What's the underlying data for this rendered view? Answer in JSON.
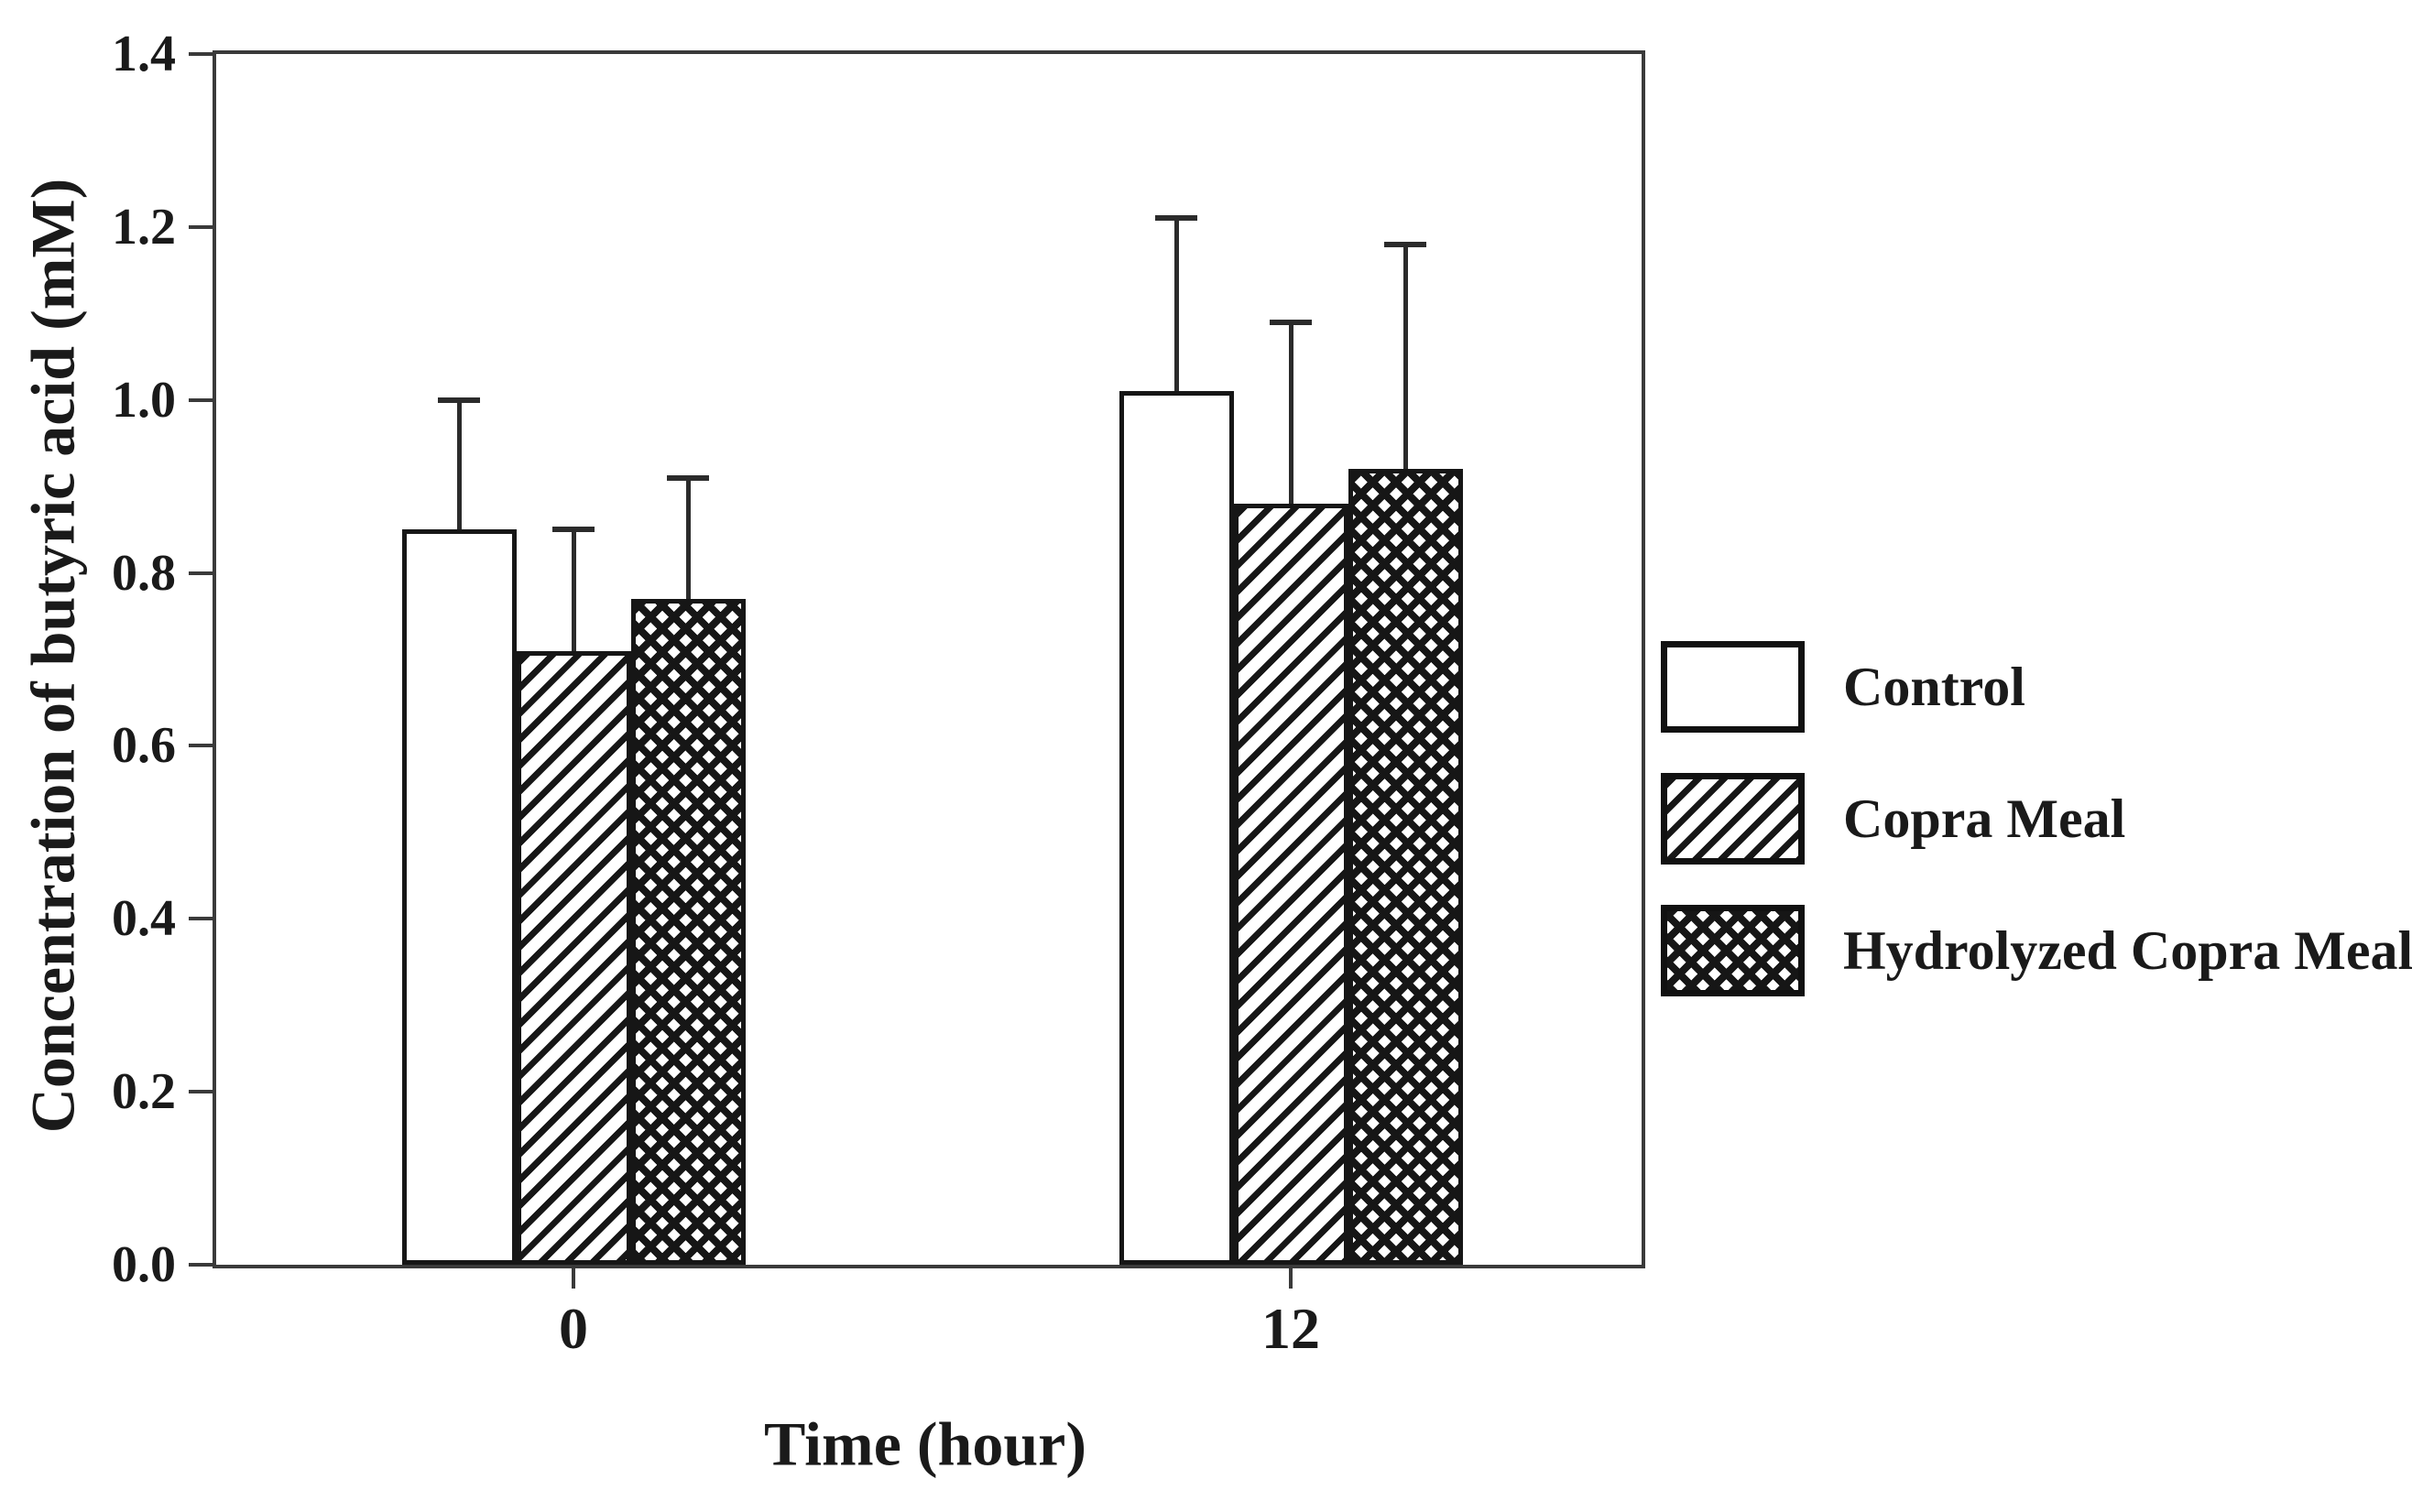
{
  "colors": {
    "ink": "#1a1a1a",
    "frame": "#3a3a3a",
    "bar_border": "#161616",
    "background": "#ffffff"
  },
  "chart_data": {
    "type": "bar",
    "title": "",
    "xlabel": "Time (hour)",
    "ylabel": "Concentration of butyric acid (mM)",
    "categories": [
      "0",
      "12"
    ],
    "series": [
      {
        "name": "Control",
        "pattern": "plain",
        "values": [
          0.85,
          1.01
        ],
        "errors": [
          0.15,
          0.2
        ]
      },
      {
        "name": "Copra Meal",
        "pattern": "diagonal",
        "values": [
          0.71,
          0.88
        ],
        "errors": [
          0.14,
          0.21
        ]
      },
      {
        "name": "Hydrolyzed Copra Meal",
        "pattern": "crosshatch",
        "values": [
          0.77,
          0.92
        ],
        "errors": [
          0.14,
          0.26
        ]
      }
    ],
    "ylim": [
      0.0,
      1.4
    ],
    "yticks": [
      "0.0",
      "0.2",
      "0.4",
      "0.6",
      "0.8",
      "1.0",
      "1.2",
      "1.4"
    ],
    "error_bars": "upper only",
    "grid": false,
    "legend_position": "right of plot, middle"
  }
}
